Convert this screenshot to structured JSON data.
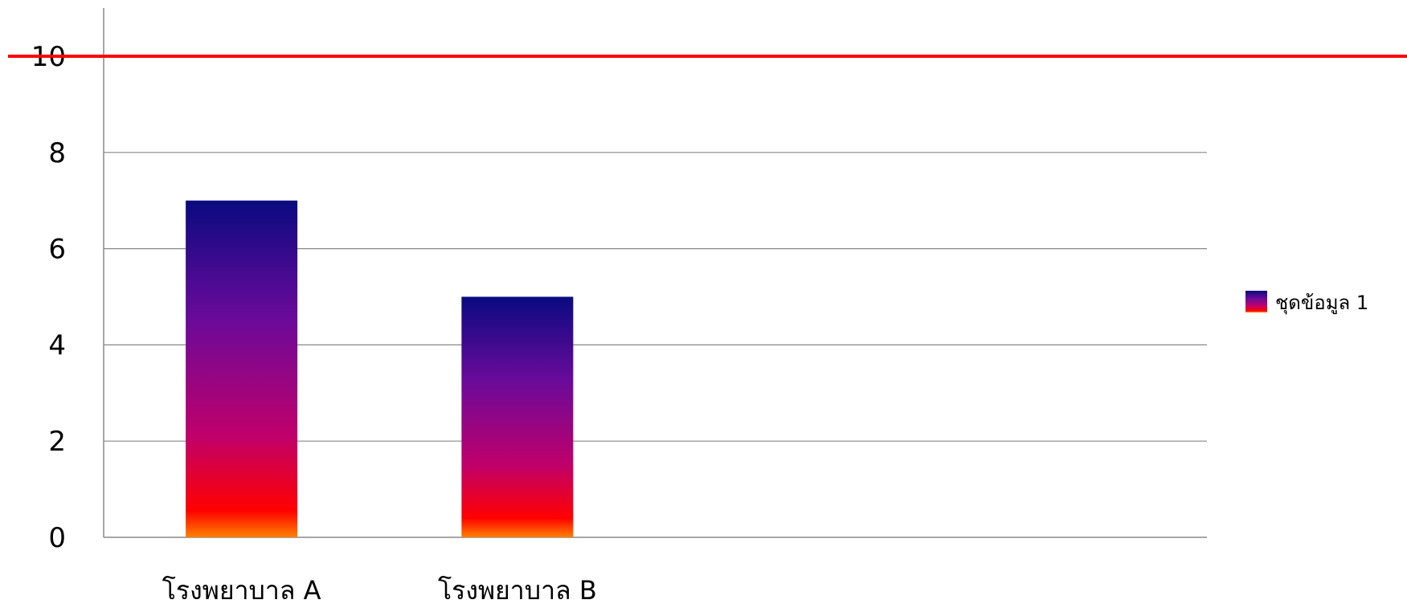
{
  "chart_data": {
    "type": "bar",
    "title": "",
    "xlabel": "",
    "ylabel": "",
    "categories": [
      "โรงพยาบาล A",
      "โรงพยาบาล B"
    ],
    "series": [
      {
        "name": "ชุดข้อมูล 1",
        "values": [
          7,
          5
        ]
      }
    ],
    "ylim": [
      0,
      10
    ],
    "yticks": [
      0,
      2,
      4,
      6,
      8,
      10
    ],
    "reference_line": {
      "value": 10,
      "color": "#ff0000"
    },
    "grid": true,
    "legend": "right",
    "bar_gradient": [
      "#0a0a80",
      "#6a0a9a",
      "#c0006a",
      "#ff0000",
      "#ff8000"
    ]
  }
}
